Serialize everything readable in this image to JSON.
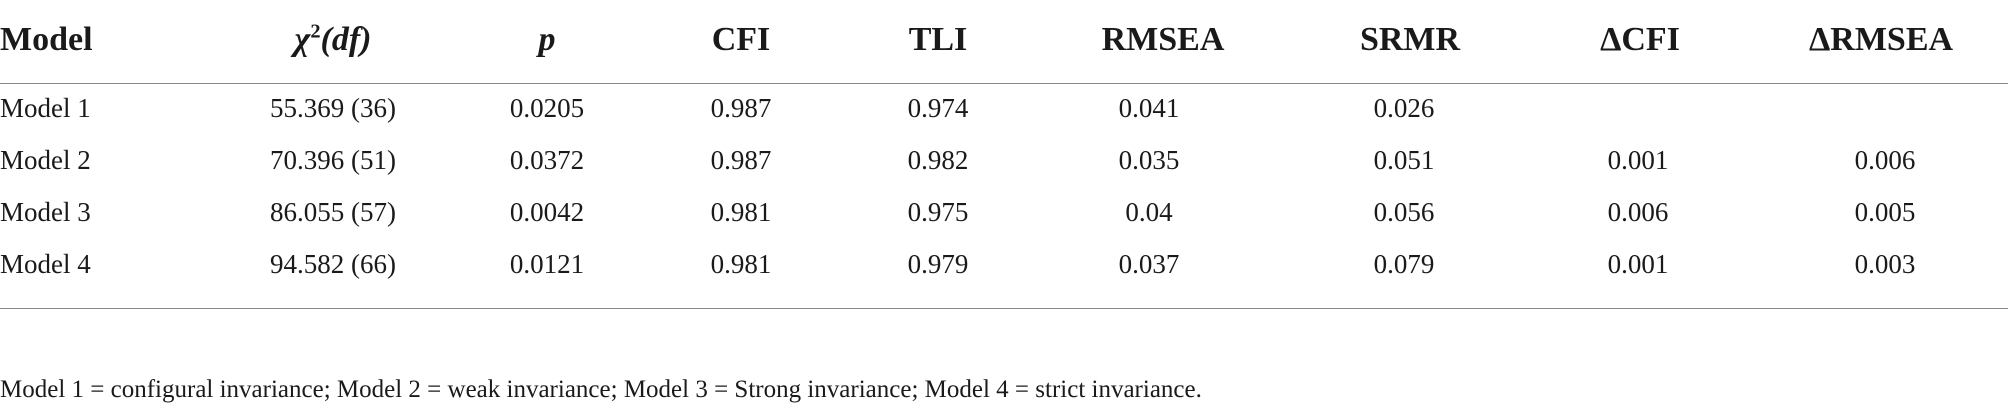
{
  "table": {
    "headers": {
      "model": "Model",
      "chi_sym": "χ",
      "chi_sup": "2",
      "chi_df": "(df)",
      "p": "p",
      "cfi": "CFI",
      "tli": "TLI",
      "rmsea": "RMSEA",
      "srmr": "SRMR",
      "dcfi": "ΔCFI",
      "drmsea": "ΔRMSEA"
    },
    "rows": [
      {
        "model": "Model 1",
        "chi": "55.369 (36)",
        "p": "0.0205",
        "cfi": "0.987",
        "tli": "0.974",
        "rmsea": "0.041",
        "srmr": "0.026",
        "dcfi": "",
        "drmsea": ""
      },
      {
        "model": "Model 2",
        "chi": "70.396 (51)",
        "p": "0.0372",
        "cfi": "0.987",
        "tli": "0.982",
        "rmsea": "0.035",
        "srmr": "0.051",
        "dcfi": "0.001",
        "drmsea": "0.006"
      },
      {
        "model": "Model 3",
        "chi": "86.055 (57)",
        "p": "0.0042",
        "cfi": "0.981",
        "tli": "0.975",
        "rmsea": "0.04",
        "srmr": "0.056",
        "dcfi": "0.006",
        "drmsea": "0.005"
      },
      {
        "model": "Model 4",
        "chi": "94.582 (66)",
        "p": "0.0121",
        "cfi": "0.981",
        "tli": "0.979",
        "rmsea": "0.037",
        "srmr": "0.079",
        "dcfi": "0.001",
        "drmsea": "0.003"
      }
    ]
  },
  "footnote": "Model 1 = configural invariance; Model 2 = weak invariance; Model 3 = Strong invariance; Model 4 = strict invariance."
}
